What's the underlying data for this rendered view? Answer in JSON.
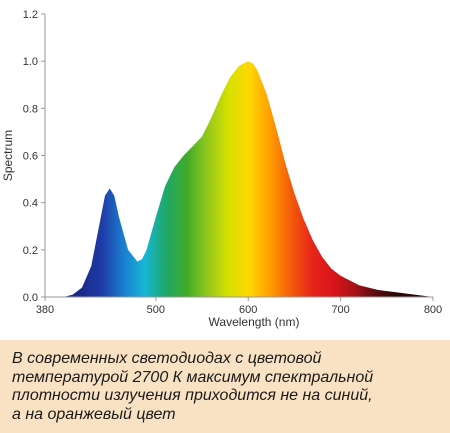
{
  "chart_data": {
    "type": "area",
    "title": "",
    "xlabel": "Wavelength (nm)",
    "ylabel": "Spectrum",
    "xlim": [
      380,
      800
    ],
    "ylim": [
      0,
      1.2
    ],
    "x_ticks": [
      "380",
      "500",
      "600",
      "700",
      "800"
    ],
    "y_ticks": [
      "0.0",
      "0.2",
      "0.4",
      "0.6",
      "0.8",
      "1.0",
      "1.2"
    ],
    "grid": false,
    "fill": "visible-spectrum gradient",
    "series": [
      {
        "x": [
          380,
          400,
          410,
          420,
          430,
          440,
          445,
          450,
          455,
          460,
          470,
          480,
          485,
          490,
          500,
          510,
          520,
          530,
          540,
          550,
          560,
          570,
          580,
          590,
          600,
          605,
          610,
          620,
          630,
          640,
          650,
          660,
          670,
          680,
          690,
          700,
          720,
          740,
          760,
          780,
          800
        ],
        "y": [
          0,
          0,
          0.01,
          0.04,
          0.13,
          0.33,
          0.43,
          0.46,
          0.43,
          0.34,
          0.2,
          0.15,
          0.16,
          0.2,
          0.34,
          0.47,
          0.55,
          0.6,
          0.64,
          0.68,
          0.76,
          0.85,
          0.93,
          0.98,
          1.0,
          0.99,
          0.96,
          0.86,
          0.72,
          0.57,
          0.44,
          0.33,
          0.24,
          0.17,
          0.12,
          0.09,
          0.05,
          0.03,
          0.02,
          0.01,
          0.0
        ]
      }
    ]
  },
  "caption": {
    "lines": [
      "В современных светодиодах с цветовой",
      "температурой 2700 К максимум спектральной",
      "плотности излучения приходится не на синий,",
      "а на оранжевый цвет"
    ]
  },
  "colors": {
    "caption_background": "#f9e2c3",
    "axis": "#999999",
    "spectrum_stops": [
      "#1a2a8c",
      "#1f3da8",
      "#1a7fd0",
      "#16b7d6",
      "#1ea86a",
      "#3faa2a",
      "#93c81c",
      "#d6e000",
      "#ffd800",
      "#ff9c00",
      "#f25a0a",
      "#e8251a",
      "#d8141a",
      "#a81216",
      "#5a0d10",
      "#2a0606"
    ]
  }
}
